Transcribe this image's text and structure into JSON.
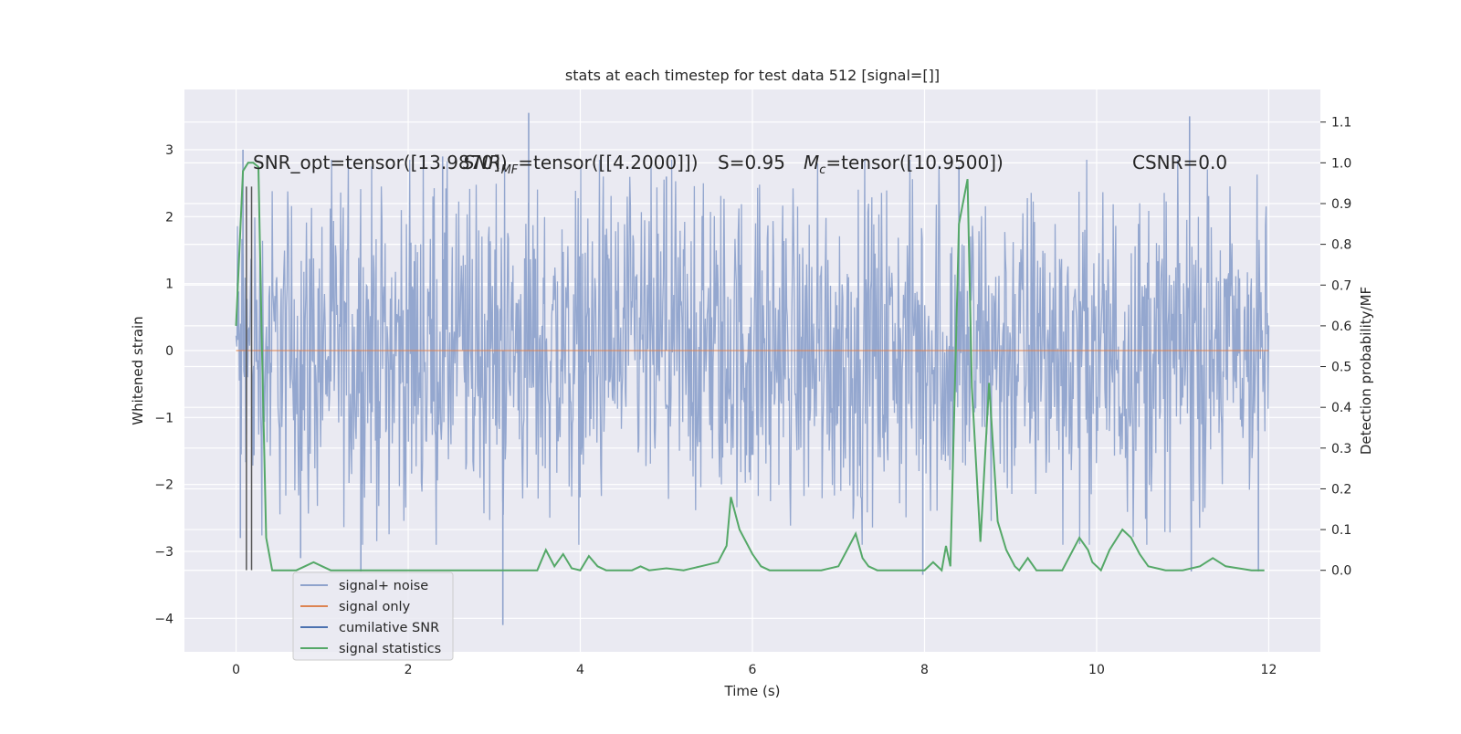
{
  "chart_data": {
    "type": "line",
    "title": "stats at each timestep for test data 512 [signal=[]]",
    "xlabel": "Time (s)",
    "ylabel_left": "Whitened strain",
    "ylabel_right": "Detection probability/MF",
    "xlim": [
      -0.6,
      12.6
    ],
    "ylim_left": [
      -4.5,
      3.9
    ],
    "ylim_right": [
      -0.2,
      1.18
    ],
    "xticks": [
      0,
      2,
      4,
      6,
      8,
      10,
      12
    ],
    "xtick_labels": [
      "0",
      "2",
      "4",
      "6",
      "8",
      "10",
      "12"
    ],
    "yticks_left": [
      3,
      2,
      1,
      0,
      -1,
      -2,
      -3,
      -4
    ],
    "ytick_labels_left": [
      "3",
      "2",
      "1",
      "0",
      "−1",
      "−2",
      "−3",
      "−4"
    ],
    "yticks_right": [
      1.1,
      1.0,
      0.9,
      0.8,
      0.7,
      0.6,
      0.5,
      0.4,
      0.3,
      0.2,
      0.1,
      0.0
    ],
    "ytick_labels_right": [
      "1.1",
      "1.0",
      "0.9",
      "0.8",
      "0.7",
      "0.6",
      "0.5",
      "0.4",
      "0.3",
      "0.2",
      "0.1",
      "0.0"
    ],
    "grid": true,
    "legend_placement": "lower-left",
    "annotations": [
      "SNR_opt=tensor([13.9870])",
      "SNR_MF=tensor([[4.2000]])",
      "S=0.95",
      "M_c=tensor([10.9500])",
      "CSNR=0.0"
    ],
    "annotation_parts": {
      "snr_opt": "SNR_opt=tensor([13.9870])",
      "snr_mf_base": "SNR",
      "snr_mf_sub": "MF",
      "snr_mf_rest": "=tensor([[4.2000]])",
      "s": "S=0.95",
      "mc_base": "M",
      "mc_sub": "c",
      "mc_rest": "=tensor([10.9500])",
      "csnr": "CSNR=0.0"
    },
    "series": [
      {
        "name": "signal+ noise",
        "axis": "left",
        "color": "#8fa3cc",
        "kind": "noise",
        "x_range": [
          0,
          12
        ],
        "typical_amplitude": 1.5,
        "spikes": [
          [
            0.05,
            -2.8
          ],
          [
            0.08,
            3.0
          ],
          [
            0.75,
            -3.1
          ],
          [
            1.45,
            -3.3
          ],
          [
            3.1,
            -4.1
          ],
          [
            3.4,
            3.55
          ],
          [
            7.98,
            -3.35
          ],
          [
            11.08,
            3.5
          ],
          [
            11.1,
            -3.3
          ],
          [
            11.88,
            -3.3
          ],
          [
            8.4,
            2.75
          ],
          [
            5.0,
            2.6
          ],
          [
            2.4,
            2.9
          ]
        ]
      },
      {
        "name": "signal only",
        "axis": "left",
        "color": "#dd8452",
        "x": [
          0,
          12
        ],
        "y": [
          0,
          0
        ]
      },
      {
        "name": "cumilative SNR",
        "axis": "left",
        "color": "#4c72b0",
        "x": [],
        "y": []
      },
      {
        "name": "signal statistics",
        "axis": "right",
        "color": "#55a868",
        "x": [
          0.0,
          0.08,
          0.14,
          0.2,
          0.26,
          0.3,
          0.35,
          0.42,
          0.5,
          0.6,
          0.7,
          0.8,
          0.9,
          1.0,
          1.1,
          1.2,
          1.4,
          1.6,
          1.7,
          1.8,
          2.0,
          2.5,
          3.0,
          3.5,
          3.6,
          3.7,
          3.8,
          3.9,
          4.0,
          4.1,
          4.2,
          4.3,
          4.6,
          4.7,
          4.8,
          5.0,
          5.2,
          5.4,
          5.6,
          5.7,
          5.75,
          5.85,
          6.0,
          6.1,
          6.2,
          6.4,
          6.6,
          6.8,
          7.0,
          7.1,
          7.2,
          7.28,
          7.35,
          7.45,
          7.55,
          7.6,
          7.7,
          7.9,
          8.0,
          8.1,
          8.2,
          8.25,
          8.3,
          8.4,
          8.5,
          8.55,
          8.65,
          8.75,
          8.85,
          8.95,
          9.05,
          9.1,
          9.2,
          9.3,
          9.4,
          9.6,
          9.8,
          9.9,
          9.95,
          10.05,
          10.15,
          10.3,
          10.4,
          10.5,
          10.6,
          10.8,
          11.0,
          11.2,
          11.35,
          11.5,
          11.8,
          11.95
        ],
        "y": [
          0.6,
          0.98,
          1.0,
          1.0,
          0.99,
          0.55,
          0.08,
          0.0,
          0.0,
          0.0,
          0.0,
          0.01,
          0.02,
          0.01,
          0.0,
          0.0,
          0.0,
          0.0,
          0.0,
          0.0,
          0.0,
          0.0,
          0.0,
          0.0,
          0.05,
          0.01,
          0.04,
          0.005,
          0.0,
          0.035,
          0.01,
          0.0,
          0.0,
          0.01,
          0.0,
          0.005,
          0.0,
          0.01,
          0.02,
          0.06,
          0.18,
          0.1,
          0.04,
          0.01,
          0.0,
          0.0,
          0.0,
          0.0,
          0.01,
          0.05,
          0.09,
          0.03,
          0.01,
          0.0,
          0.0,
          0.0,
          0.0,
          0.0,
          0.0,
          0.02,
          0.0,
          0.06,
          0.01,
          0.85,
          0.96,
          0.45,
          0.07,
          0.46,
          0.12,
          0.05,
          0.01,
          0.0,
          0.03,
          0.0,
          0.0,
          0.0,
          0.08,
          0.05,
          0.02,
          0.0,
          0.05,
          0.1,
          0.08,
          0.04,
          0.01,
          0.0,
          0.0,
          0.01,
          0.03,
          0.01,
          0.0,
          0.0
        ]
      }
    ],
    "vertical_markers": {
      "color": "#555555",
      "x": [
        0.12,
        0.18
      ],
      "y_from": -3.28,
      "y_to": 2.45
    }
  }
}
